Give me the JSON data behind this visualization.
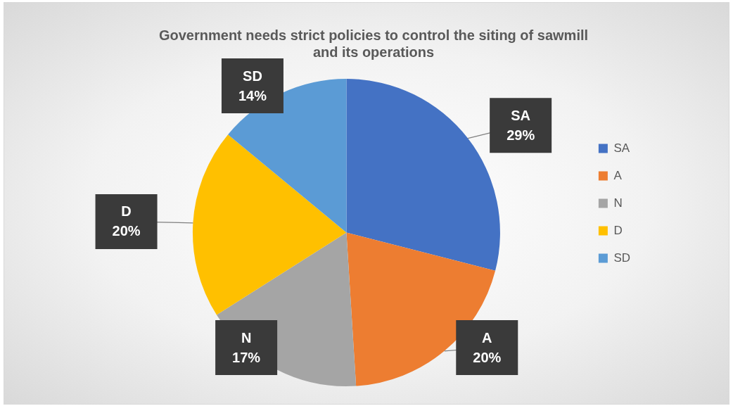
{
  "chart_data": {
    "type": "pie",
    "title": "Government needs strict policies to control the siting of sawmill and its operations",
    "categories": [
      "SA",
      "A",
      "N",
      "D",
      "SD"
    ],
    "values": [
      29,
      20,
      17,
      20,
      14
    ],
    "colors": [
      "#4472c4",
      "#ed7d31",
      "#a5a5a5",
      "#ffc000",
      "#5b9bd5"
    ],
    "value_labels": [
      "29%",
      "20%",
      "17%",
      "20%",
      "14%"
    ],
    "legend": "right"
  }
}
